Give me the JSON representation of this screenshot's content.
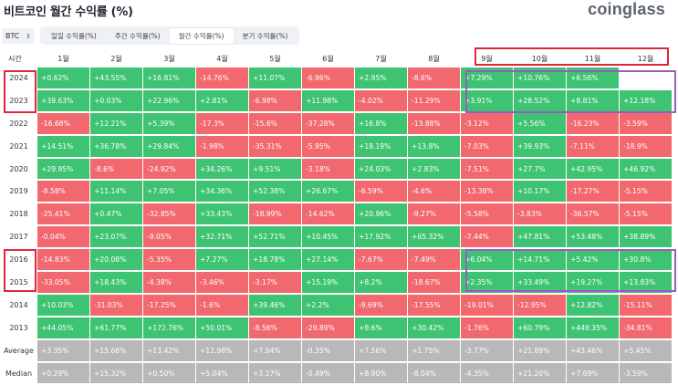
{
  "header": {
    "title": "비트코인 월간 수익률 (%)",
    "logo": "coinglass"
  },
  "controls": {
    "coin": "BTC",
    "tabs": [
      {
        "label": "일일 수익률(%)",
        "active": false
      },
      {
        "label": "주간 수익률(%)",
        "active": false
      },
      {
        "label": "월간 수익률(%)",
        "active": true
      },
      {
        "label": "분기 수익률(%)",
        "active": false
      }
    ]
  },
  "table": {
    "corner": "시간",
    "columns": [
      "1월",
      "2월",
      "3월",
      "4월",
      "5월",
      "6월",
      "7월",
      "8월",
      "9월",
      "10월",
      "11월",
      "12월"
    ],
    "rows": [
      {
        "label": "2024",
        "cells": [
          "+0.62%",
          "+43.55%",
          "+16.81%",
          "-14.76%",
          "+11.07%",
          "-6.96%",
          "+2.95%",
          "-8.6%",
          "+7.29%",
          "+10.76%",
          "+6.56%",
          ""
        ]
      },
      {
        "label": "2023",
        "cells": [
          "+39.63%",
          "+0.03%",
          "+22.96%",
          "+2.81%",
          "-6.98%",
          "+11.98%",
          "-4.02%",
          "-11.29%",
          "+3.91%",
          "+28.52%",
          "+8.81%",
          "+12.18%"
        ]
      },
      {
        "label": "2022",
        "cells": [
          "-16.68%",
          "+12.21%",
          "+5.39%",
          "-17.3%",
          "-15.6%",
          "-37.28%",
          "+16.8%",
          "-13.88%",
          "-3.12%",
          "+5.56%",
          "-16.23%",
          "-3.59%"
        ]
      },
      {
        "label": "2021",
        "cells": [
          "+14.51%",
          "+36.78%",
          "+29.84%",
          "-1.98%",
          "-35.31%",
          "-5.95%",
          "+18.19%",
          "+13.8%",
          "-7.03%",
          "+39.93%",
          "-7.11%",
          "-18.9%"
        ]
      },
      {
        "label": "2020",
        "cells": [
          "+29.95%",
          "-8.6%",
          "-24.92%",
          "+34.26%",
          "+9.51%",
          "-3.18%",
          "+24.03%",
          "+2.83%",
          "-7.51%",
          "+27.7%",
          "+42.95%",
          "+46.92%"
        ]
      },
      {
        "label": "2019",
        "cells": [
          "-8.58%",
          "+11.14%",
          "+7.05%",
          "+34.36%",
          "+52.38%",
          "+26.67%",
          "-6.59%",
          "-4.6%",
          "-13.38%",
          "+10.17%",
          "-17.27%",
          "-5.15%"
        ]
      },
      {
        "label": "2018",
        "cells": [
          "-25.41%",
          "+0.47%",
          "-32.85%",
          "+33.43%",
          "-18.99%",
          "-14.62%",
          "+20.96%",
          "-9.27%",
          "-5.58%",
          "-3.83%",
          "-36.57%",
          "-5.15%"
        ]
      },
      {
        "label": "2017",
        "cells": [
          "-0.04%",
          "+23.07%",
          "-9.05%",
          "+32.71%",
          "+52.71%",
          "+10.45%",
          "+17.92%",
          "+65.32%",
          "-7.44%",
          "+47.81%",
          "+53.48%",
          "+38.89%"
        ]
      },
      {
        "label": "2016",
        "cells": [
          "-14.83%",
          "+20.08%",
          "-5.35%",
          "+7.27%",
          "+18.78%",
          "+27.14%",
          "-7.67%",
          "-7.49%",
          "+6.04%",
          "+14.71%",
          "+5.42%",
          "+30.8%"
        ]
      },
      {
        "label": "2015",
        "cells": [
          "-33.05%",
          "+18.43%",
          "-4.38%",
          "-3.46%",
          "-3.17%",
          "+15.19%",
          "+8.2%",
          "-18.67%",
          "+2.35%",
          "+33.49%",
          "+19.27%",
          "+13.83%"
        ]
      },
      {
        "label": "2014",
        "cells": [
          "+10.03%",
          "-31.03%",
          "-17.25%",
          "-1.6%",
          "+39.46%",
          "+2.2%",
          "-9.69%",
          "-17.55%",
          "-19.01%",
          "-12.95%",
          "+12.82%",
          "-15.11%"
        ]
      },
      {
        "label": "2013",
        "cells": [
          "+44.05%",
          "+61.77%",
          "+172.76%",
          "+50.01%",
          "-8.56%",
          "-29.89%",
          "+9.6%",
          "+30.42%",
          "-1.76%",
          "+60.79%",
          "+449.35%",
          "-34.81%"
        ]
      },
      {
        "label": "Average",
        "summary": true,
        "cells": [
          "+3.35%",
          "+15.66%",
          "+13.42%",
          "+12.98%",
          "+7.94%",
          "-0.35%",
          "+7.56%",
          "+1.75%",
          "-3.77%",
          "+21.89%",
          "+43.46%",
          "+5.45%"
        ]
      },
      {
        "label": "Median",
        "summary": true,
        "cells": [
          "+0.29%",
          "+15.32%",
          "+0.50%",
          "+5.04%",
          "+3.17%",
          "-0.49%",
          "+8.90%",
          "-8.04%",
          "-4.35%",
          "+21.20%",
          "+7.69%",
          "-3.59%"
        ]
      }
    ]
  },
  "colors": {
    "positive": "#3ec372",
    "negative": "#f2686f",
    "summary": "#b8b8b8",
    "highlight_red": "#e0263a",
    "highlight_purple": "#9a5cc0"
  }
}
